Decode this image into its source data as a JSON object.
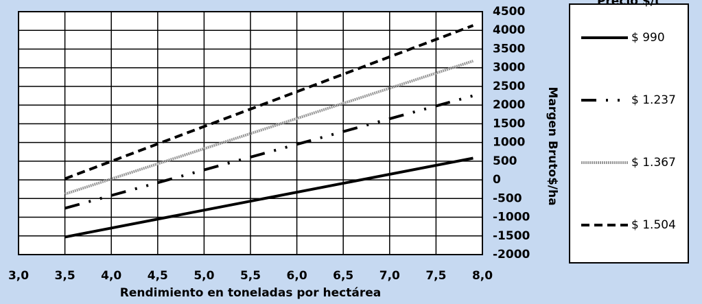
{
  "chart_data": {
    "type": "line",
    "x_label": "Rendimiento en toneladas por hectárea",
    "y_label": "Margen Bruto$/ha",
    "legend_title": "Precio $/t",
    "xlim": [
      3,
      8
    ],
    "xticks": [
      {
        "value": 3,
        "label": "3,0"
      },
      {
        "value": 3.5,
        "label": "3,5"
      },
      {
        "value": 4,
        "label": "4,0"
      },
      {
        "value": 4.5,
        "label": "4,5"
      },
      {
        "value": 5,
        "label": "5,0"
      },
      {
        "value": 5.5,
        "label": "5,5"
      },
      {
        "value": 6,
        "label": "6,0"
      },
      {
        "value": 6.5,
        "label": "6,5"
      },
      {
        "value": 7,
        "label": "7,0"
      },
      {
        "value": 7.5,
        "label": "7,5"
      },
      {
        "value": 8,
        "label": "8,0"
      }
    ],
    "ylim": [
      -2000,
      4500
    ],
    "yticks": [
      4500,
      4000,
      3500,
      3000,
      2500,
      2000,
      1500,
      1000,
      500,
      0,
      -500,
      -1000,
      -1500,
      -2000
    ],
    "negative_tick_color": "#e00000",
    "grid": true,
    "legend": "right",
    "x": [
      3.5,
      7.9
    ],
    "series": [
      {
        "name": "$ 990",
        "color": "#000000",
        "dash": "solid",
        "values": [
          -1530,
          580
        ]
      },
      {
        "name": "$ 1.237",
        "color": "#000000",
        "dash": "dashdotdot",
        "values": [
          -760,
          2250
        ]
      },
      {
        "name": "$ 1.367",
        "color": "#999999",
        "dash": "dotted",
        "values": [
          -380,
          3180
        ]
      },
      {
        "name": "$ 1.504",
        "color": "#000000",
        "dash": "dashed",
        "values": [
          30,
          4130
        ]
      }
    ]
  }
}
